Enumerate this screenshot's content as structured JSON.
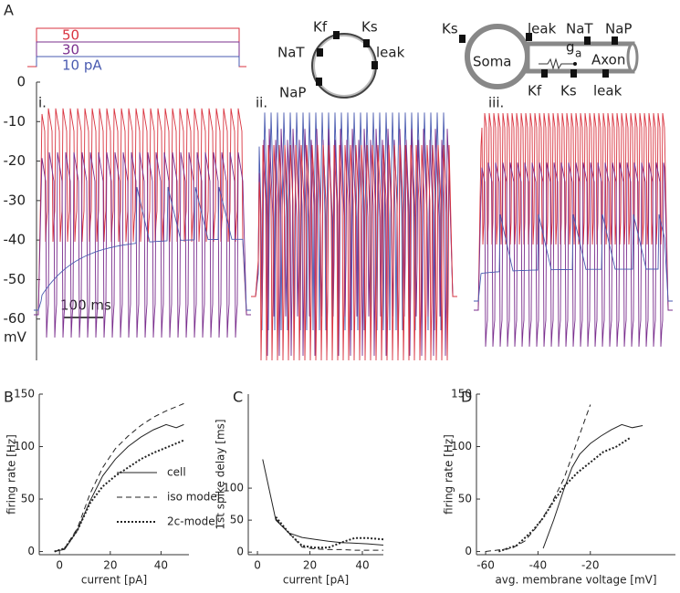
{
  "panel_labels": [
    "A",
    "B",
    "C",
    "D"
  ],
  "panel_a": {
    "stimulus_labels": [
      "50",
      "30",
      "10 pA"
    ],
    "ylim": [
      -70,
      0
    ],
    "yticks": [
      0,
      -10,
      -20,
      -30,
      -40,
      -50,
      -60
    ],
    "unit": "mV",
    "subpanels": [
      "i.",
      "ii.",
      "iii."
    ],
    "scale_bar": "100 ms",
    "single_compartment": {
      "channels": [
        "Kf",
        "Ks",
        "NaT",
        "leak",
        "NaP"
      ]
    },
    "two_compartment": {
      "labels": [
        "Ks",
        "leak",
        "NaT",
        "NaP",
        "Soma",
        "Axon",
        "Kf",
        "Ks",
        "leak"
      ],
      "conductance": "g",
      "conductance_sub": "a"
    },
    "trace_colors": [
      "#d9333f",
      "#7b2f8e",
      "#4a5bb0"
    ]
  },
  "chart_data": [
    {
      "type": "line",
      "xlabel": "current [pA]",
      "ylabel": "firing rate [Hz]",
      "x": [
        -2,
        2,
        7,
        12,
        17,
        22,
        27,
        32,
        37,
        42,
        46,
        49
      ],
      "xlim": [
        -8,
        51
      ],
      "ylim": [
        -3,
        150
      ],
      "xticks": [
        0,
        20,
        40
      ],
      "yticks": [
        0,
        50,
        100,
        150
      ],
      "series": [
        {
          "name": "cell",
          "color": "#222222",
          "dash": "solid",
          "values": [
            0,
            2,
            20,
            48,
            72,
            88,
            100,
            109,
            116,
            121,
            118,
            121
          ]
        },
        {
          "name": "iso  model",
          "color": "#222222",
          "dash": "dashed",
          "values": [
            0,
            3,
            22,
            55,
            80,
            98,
            110,
            120,
            128,
            134,
            138,
            141
          ]
        },
        {
          "name": "2c-model",
          "color": "#222222",
          "dash": "dotted",
          "values": [
            0,
            3,
            20,
            46,
            62,
            72,
            80,
            88,
            94,
            99,
            103,
            106
          ]
        }
      ]
    },
    {
      "type": "line",
      "xlabel": "current [pA]",
      "ylabel": "1st spike delay [ms]",
      "x": [
        2,
        7,
        12,
        17,
        22,
        27,
        32,
        37,
        42,
        48
      ],
      "xlim": [
        -3.5,
        48
      ],
      "ylim": [
        -4,
        247
      ],
      "xticks": [
        0,
        20,
        40
      ],
      "yticks": [
        0,
        50,
        100
      ],
      "series": [
        {
          "color": "#222222",
          "dash": "solid",
          "values": [
            145,
            50,
            30,
            23,
            20,
            17,
            15,
            14,
            13,
            11
          ]
        },
        {
          "color": "#222222",
          "dash": "dashed",
          "values": [
            null,
            52,
            30,
            8,
            5,
            4,
            4,
            3,
            3,
            3
          ]
        },
        {
          "color": "#222222",
          "dash": "dotted",
          "values": [
            null,
            55,
            30,
            10,
            7,
            7,
            15,
            22,
            22,
            20
          ]
        }
      ]
    },
    {
      "type": "line",
      "xlabel": "avg. membrane voltage [mV]",
      "ylabel": "firing rate [Hz]",
      "xlim": [
        -63.5,
        12.5
      ],
      "ylim": [
        -3,
        150
      ],
      "xticks": [
        -60,
        -40,
        -20
      ],
      "yticks": [
        0,
        50,
        100,
        150
      ],
      "series": [
        {
          "color": "#222222",
          "dash": "solid",
          "x": [
            -38,
            -34,
            -30,
            -27,
            -24,
            -20,
            -16,
            -12,
            -8,
            -4,
            0
          ],
          "values": [
            3,
            30,
            60,
            80,
            93,
            103,
            110,
            116,
            121,
            118,
            120
          ]
        },
        {
          "color": "#222222",
          "dash": "dashed",
          "x": [
            -60,
            -50,
            -45,
            -40,
            -35,
            -30,
            -25,
            -20
          ],
          "values": [
            0,
            3,
            10,
            25,
            45,
            70,
            105,
            140
          ]
        },
        {
          "color": "#222222",
          "dash": "dotted",
          "x": [
            -55,
            -48,
            -42,
            -38,
            -34,
            -30,
            -25,
            -20,
            -15,
            -10,
            -5
          ],
          "values": [
            0,
            6,
            20,
            32,
            48,
            62,
            75,
            85,
            95,
            100,
            108
          ]
        }
      ]
    }
  ]
}
